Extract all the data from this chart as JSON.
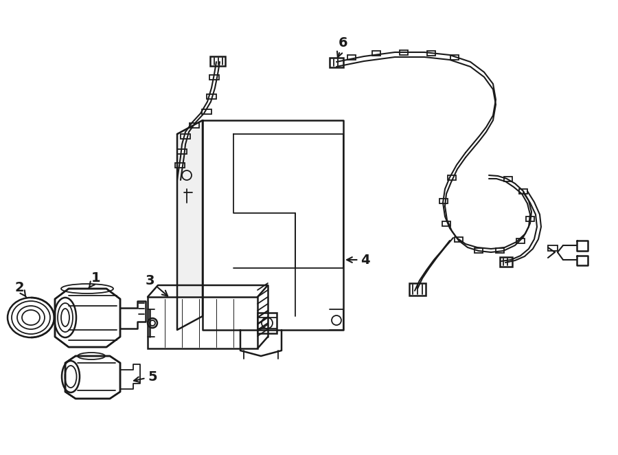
{
  "bg_color": "#ffffff",
  "lc": "#1a1a1a",
  "lw": 1.3,
  "lw2": 1.8
}
